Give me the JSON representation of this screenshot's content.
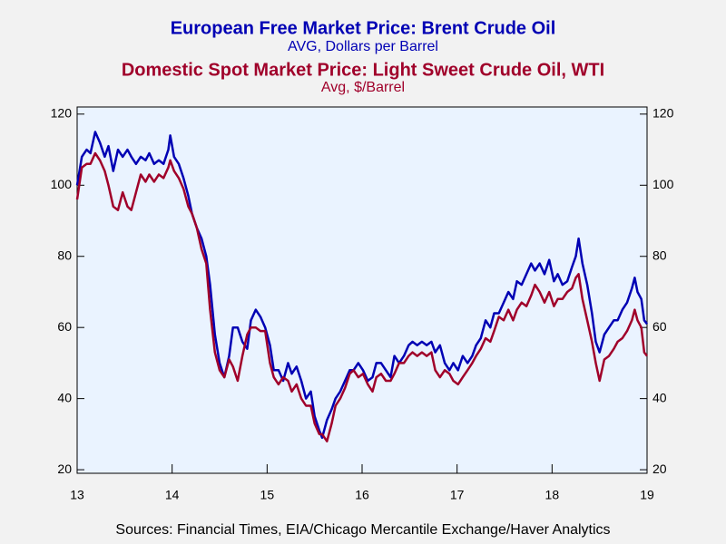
{
  "chart_data": {
    "type": "line",
    "series": [
      {
        "name": "European Free Market Price: Brent Crude Oil",
        "unit": "AVG, Dollars per Barrel",
        "color": "#0000b4",
        "values": [
          100,
          108,
          110,
          109,
          115,
          112,
          108,
          111,
          104,
          110,
          108,
          110,
          108,
          106,
          108,
          107,
          109,
          106,
          107,
          106,
          110,
          114,
          108,
          106,
          102,
          97,
          92,
          88,
          85,
          80,
          72,
          58,
          50,
          46,
          52,
          60,
          60,
          56,
          54,
          62,
          65,
          63,
          60,
          55,
          48,
          48,
          45,
          50,
          47,
          49,
          45,
          40,
          42,
          35,
          31,
          29,
          34,
          37,
          40,
          42,
          45,
          48,
          48,
          50,
          48,
          45,
          46,
          50,
          50,
          48,
          46,
          52,
          50,
          52,
          55,
          56,
          55,
          56,
          55,
          56,
          53,
          55,
          50,
          48,
          50,
          48,
          52,
          50,
          52,
          55,
          57,
          62,
          60,
          64,
          64,
          67,
          70,
          68,
          73,
          72,
          75,
          78,
          76,
          78,
          75,
          79,
          73,
          75,
          72,
          73,
          77,
          80,
          85,
          78,
          72,
          64,
          56,
          53,
          58,
          60,
          62,
          62,
          65,
          67,
          71,
          74,
          70,
          68,
          62,
          61
        ]
      },
      {
        "name": "Domestic Spot Market Price: Light Sweet Crude Oil, WTI",
        "unit": "Avg, $/Barrel",
        "color": "#a0002a",
        "values": [
          96,
          105,
          106,
          106,
          109,
          107,
          104,
          100,
          94,
          93,
          98,
          94,
          93,
          98,
          103,
          101,
          103,
          101,
          103,
          102,
          105,
          107,
          104,
          102,
          99,
          94,
          92,
          88,
          82,
          78,
          65,
          53,
          48,
          46,
          51,
          49,
          45,
          52,
          58,
          60,
          60,
          59,
          59,
          50,
          46,
          44,
          46,
          45,
          42,
          44,
          40,
          38,
          38,
          33,
          30,
          30,
          28,
          33,
          38,
          40,
          43,
          47,
          48,
          46,
          47,
          44,
          42,
          46,
          47,
          45,
          45,
          47,
          50,
          50,
          52,
          53,
          52,
          53,
          52,
          53,
          48,
          46,
          48,
          47,
          45,
          44,
          46,
          48,
          50,
          52,
          54,
          57,
          56,
          59,
          63,
          62,
          65,
          62,
          65,
          67,
          66,
          69,
          72,
          70,
          67,
          70,
          66,
          68,
          68,
          70,
          71,
          74,
          75,
          68,
          62,
          56,
          50,
          45,
          51,
          52,
          54,
          56,
          57,
          59,
          62,
          65,
          62,
          60,
          53,
          52
        ]
      }
    ],
    "x": [
      2013.0,
      2013.05,
      2013.1,
      2013.14,
      2013.19,
      2013.24,
      2013.29,
      2013.33,
      2013.38,
      2013.43,
      2013.48,
      2013.53,
      2013.57,
      2013.62,
      2013.67,
      2013.72,
      2013.76,
      2013.81,
      2013.86,
      2013.91,
      2013.96,
      2013.98,
      2014.02,
      2014.07,
      2014.12,
      2014.17,
      2014.21,
      2014.26,
      2014.31,
      2014.36,
      2014.4,
      2014.45,
      2014.5,
      2014.55,
      2014.6,
      2014.64,
      2014.69,
      2014.74,
      2014.79,
      2014.83,
      2014.88,
      2014.93,
      2014.98,
      2015.03,
      2015.07,
      2015.12,
      2015.17,
      2015.22,
      2015.26,
      2015.31,
      2015.36,
      2015.41,
      2015.46,
      2015.5,
      2015.55,
      2015.58,
      2015.63,
      2015.68,
      2015.72,
      2015.77,
      2015.82,
      2015.87,
      2015.91,
      2015.96,
      2016.01,
      2016.06,
      2016.11,
      2016.15,
      2016.2,
      2016.25,
      2016.3,
      2016.34,
      2016.39,
      2016.44,
      2016.49,
      2016.53,
      2016.58,
      2016.63,
      2016.68,
      2016.73,
      2016.77,
      2016.82,
      2016.87,
      2016.92,
      2016.96,
      2017.01,
      2017.06,
      2017.11,
      2017.16,
      2017.2,
      2017.25,
      2017.3,
      2017.35,
      2017.39,
      2017.44,
      2017.49,
      2017.54,
      2017.59,
      2017.63,
      2017.68,
      2017.73,
      2017.78,
      2017.82,
      2017.87,
      2017.92,
      2017.97,
      2018.02,
      2018.06,
      2018.11,
      2018.16,
      2018.21,
      2018.25,
      2018.28,
      2018.32,
      2018.37,
      2018.42,
      2018.46,
      2018.5,
      2018.55,
      2018.6,
      2018.65,
      2018.69,
      2018.74,
      2018.79,
      2018.84,
      2018.87,
      2018.9,
      2018.94,
      2018.97,
      2019.0
    ],
    "xlim": [
      2013,
      2019
    ],
    "xticks": [
      {
        "value": 2013,
        "label": "13"
      },
      {
        "value": 2014,
        "label": "14"
      },
      {
        "value": 2015,
        "label": "15"
      },
      {
        "value": 2016,
        "label": "16"
      },
      {
        "value": 2017,
        "label": "17"
      },
      {
        "value": 2018,
        "label": "18"
      },
      {
        "value": 2019,
        "label": "19"
      }
    ],
    "ylim": [
      19,
      122
    ],
    "yticks": [
      20,
      40,
      60,
      80,
      100,
      120
    ],
    "y2lim": [
      19,
      122
    ],
    "y2ticks": [
      20,
      40,
      60,
      80,
      100,
      120
    ],
    "source": "Sources:  Financial Times, EIA/Chicago Mercantile Exchange/Haver Analytics"
  }
}
